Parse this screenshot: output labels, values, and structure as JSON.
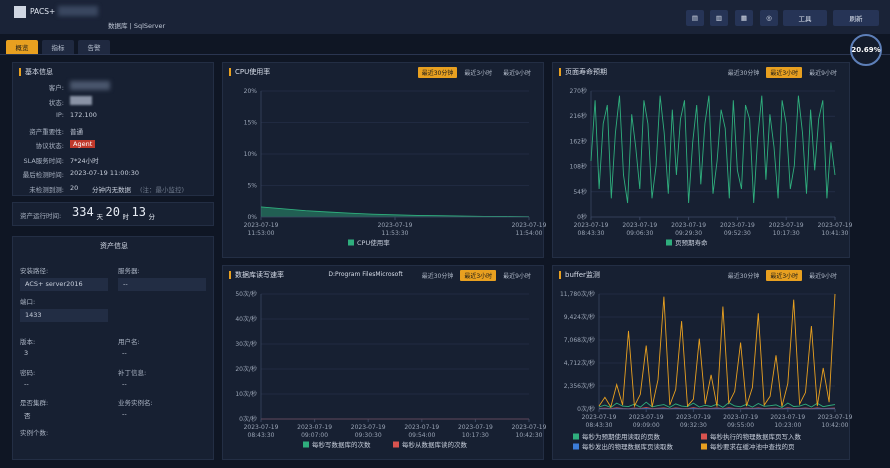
{
  "header": {
    "title": "PACS+",
    "subtitle": "数据库 | SqlServer",
    "buttons": [
      "工具",
      "刷新"
    ]
  },
  "tabs": [
    "概览",
    "指标",
    "告警"
  ],
  "score": "20.69%",
  "basic_info": {
    "title": "基本信息",
    "fields": [
      {
        "label": "客户:"
      },
      {
        "label": "状态:"
      },
      {
        "label": "IP:",
        "value": "172.100"
      },
      {
        "label": "资产重要性:",
        "value": "普通"
      },
      {
        "label": "协议状态:",
        "value": "Agent"
      },
      {
        "label": "SLA服务时间:",
        "value": "7*24小时"
      },
      {
        "label": "最后检测时间:",
        "value": "2023-07-19 11:00:30"
      },
      {
        "label": "未检测到测:",
        "value": "20",
        "extra": "分钟内无数据",
        "note": "(注：最小监控)"
      }
    ]
  },
  "uptime": {
    "label": "资产运行时间:",
    "parts": [
      "334",
      "天",
      "20",
      "时",
      "13",
      "分"
    ]
  },
  "asset_info": {
    "title": "资产信息",
    "fields": [
      {
        "label": "安装路径:",
        "value": "ACS+ server2016"
      },
      {
        "label": "服务器:",
        "value": "--"
      },
      {
        "label": "端口:",
        "value": "1433"
      },
      {
        "label": "版本:",
        "value": "3"
      },
      {
        "label": "用户名:",
        "value": "--"
      },
      {
        "label": "密码:",
        "value": "--"
      },
      {
        "label": "补丁信息:",
        "value": "--"
      },
      {
        "label": "是否集群:",
        "value": "否"
      },
      {
        "label": "业务实例名:",
        "value": "--"
      },
      {
        "label": "实例个数:"
      }
    ]
  },
  "chart_data": [
    {
      "type": "area",
      "title": "CPU使用率",
      "range_buttons": [
        "最近30分钟",
        "最近3小时",
        "最近9小时"
      ],
      "active_range": 0,
      "categories": [
        "2023-07-19 11:53:00",
        null,
        null,
        null,
        null,
        null,
        "2023-07-19 11:53:30",
        null,
        null,
        null,
        null,
        null,
        "2023-07-19 11:54:00"
      ],
      "series": [
        {
          "name": "CPU使用率",
          "color": "#2fae7d",
          "values": [
            1.6,
            1.3,
            1.0,
            0.8,
            0.6,
            0.45,
            0.35,
            0.25,
            0.2,
            0.15,
            0.1,
            0.08,
            0.05
          ]
        }
      ],
      "ylim": [
        0,
        20
      ],
      "yticks": [
        {
          "value": 0,
          "label": "0%"
        },
        {
          "value": 5,
          "label": "5%"
        },
        {
          "value": 10,
          "label": "10%"
        },
        {
          "value": 15,
          "label": "15%"
        },
        {
          "value": 20,
          "label": "20%"
        }
      ],
      "grid": true
    },
    {
      "type": "line",
      "title": "页面寿命预期",
      "range_buttons": [
        "最近30分钟",
        "最近3小时",
        "最近9小时"
      ],
      "active_range": 1,
      "categories": [
        "2023-07-19 08:43:30",
        null,
        null,
        null,
        null,
        null,
        null,
        null,
        null,
        null,
        null,
        null,
        "2023-07-19 09:06:30",
        null,
        null,
        null,
        null,
        null,
        null,
        null,
        null,
        null,
        null,
        null,
        "2023-07-19 09:29:30",
        null,
        null,
        null,
        null,
        null,
        null,
        null,
        null,
        null,
        null,
        null,
        "2023-07-19 09:52:30",
        null,
        null,
        null,
        null,
        null,
        null,
        null,
        null,
        null,
        null,
        null,
        "2023-07-19 10:17:30",
        null,
        null,
        null,
        null,
        null,
        null,
        null,
        null,
        null,
        null,
        null,
        "2023-07-19 10:41:30"
      ],
      "series": [
        {
          "name": "页预期寿命",
          "color": "#2fae7d",
          "values": [
            120,
            250,
            60,
            200,
            240,
            40,
            180,
            260,
            90,
            30,
            220,
            150,
            60,
            250,
            200,
            40,
            110,
            260,
            180,
            50,
            230,
            90,
            210,
            250,
            30,
            160,
            240,
            70,
            200,
            260,
            50,
            120,
            230,
            190,
            40,
            250,
            100,
            60,
            240,
            210,
            30,
            170,
            260,
            80,
            220,
            150,
            40,
            250,
            200,
            60,
            110,
            260,
            180,
            50,
            230,
            100,
            210,
            250,
            40,
            160,
            90
          ]
        }
      ],
      "ylim": [
        0,
        270
      ],
      "yticks": [
        {
          "value": 0,
          "label": "0秒"
        },
        {
          "value": 54,
          "label": "54秒"
        },
        {
          "value": 108,
          "label": "108秒"
        },
        {
          "value": 162,
          "label": "162秒"
        },
        {
          "value": 216,
          "label": "216秒"
        },
        {
          "value": 270,
          "label": "270秒"
        }
      ],
      "grid": true
    },
    {
      "type": "line",
      "title": "数据库读写速率",
      "dropdown": "D:Program FilesMicrosoft",
      "range_buttons": [
        "最近30分钟",
        "最近3小时",
        "最近9小时"
      ],
      "active_range": 1,
      "categories": [
        "2023-07-19 08:43:30",
        null,
        null,
        null,
        null,
        "2023-07-19 09:07:00",
        null,
        null,
        null,
        null,
        "2023-07-19 09:30:30",
        null,
        null,
        null,
        null,
        "2023-07-19 09:54:00",
        null,
        null,
        null,
        null,
        "2023-07-19 10:17:30",
        null,
        null,
        null,
        null,
        "2023-07-19 10:42:30"
      ],
      "series": [
        {
          "name": "每秒写数据库的次数",
          "color": "#2fae7d",
          "values": [
            0,
            0,
            0,
            0,
            0,
            0,
            0,
            0,
            0,
            0,
            0,
            0,
            0,
            0,
            0,
            0,
            0,
            0,
            0,
            0,
            0,
            0,
            0,
            0,
            0,
            0
          ]
        },
        {
          "name": "每秒从数据库读的次数",
          "color": "#d9534f",
          "values": [
            0,
            0,
            0,
            0,
            0,
            0,
            0,
            0,
            0,
            0,
            0,
            0,
            0,
            0,
            0,
            0,
            0,
            0,
            0,
            0,
            0,
            0,
            0,
            0,
            0,
            0
          ]
        }
      ],
      "ylim": [
        0,
        50
      ],
      "yticks": [
        {
          "value": 0,
          "label": "0次/秒"
        },
        {
          "value": 10,
          "label": "10次/秒"
        },
        {
          "value": 20,
          "label": "20次/秒"
        },
        {
          "value": 30,
          "label": "30次/秒"
        },
        {
          "value": 40,
          "label": "40次/秒"
        },
        {
          "value": 50,
          "label": "50次/秒"
        }
      ],
      "grid": true
    },
    {
      "type": "line",
      "title": "buffer监测",
      "range_buttons": [
        "最近30分钟",
        "最近3小时",
        "最近9小时"
      ],
      "active_range": 1,
      "categories": [
        "2023-07-19 08:43:30",
        null,
        null,
        null,
        null,
        null,
        null,
        null,
        "2023-07-19 09:09:00",
        null,
        null,
        null,
        null,
        null,
        null,
        null,
        "2023-07-19 09:32:30",
        null,
        null,
        null,
        null,
        null,
        null,
        null,
        "2023-07-19 09:55:00",
        null,
        null,
        null,
        null,
        null,
        null,
        null,
        "2023-07-19 10:23:00",
        null,
        null,
        null,
        null,
        null,
        null,
        null,
        "2023-07-19 10:42:00"
      ],
      "series": [
        {
          "name": "每秒为预期使用读取的页数",
          "color": "#2fae7d",
          "values": [
            200,
            400,
            150,
            600,
            300,
            250,
            500,
            180,
            700,
            220,
            350,
            450,
            160,
            520,
            300,
            240,
            600,
            200,
            380,
            260,
            500,
            170,
            650,
            310,
            230,
            480,
            190,
            560,
            280,
            340,
            420,
            150,
            610,
            260,
            300,
            500,
            200,
            580,
            240,
            360,
            450
          ]
        },
        {
          "name": "每秒执行的物理数据库页写入数",
          "color": "#d9534f",
          "values": [
            50,
            80,
            40,
            120,
            60,
            30,
            90,
            50,
            140,
            40,
            70,
            100,
            30,
            110,
            60,
            45,
            130,
            40,
            80,
            55,
            100,
            35,
            120,
            60,
            40,
            90,
            50,
            110,
            45,
            70,
            85,
            30,
            125,
            50,
            60,
            95,
            40,
            115,
            45,
            75,
            90
          ]
        },
        {
          "name": "每秒发出的物理数据库页读取数",
          "color": "#3c7dd9",
          "values": [
            20,
            30,
            10,
            40,
            25,
            15,
            35,
            20,
            50,
            15,
            25,
            40,
            10,
            45,
            20,
            15,
            50,
            15,
            30,
            20,
            40,
            10,
            45,
            25,
            15,
            35,
            20,
            40,
            15,
            25,
            30,
            10,
            45,
            20,
            25,
            35,
            15,
            40,
            20,
            30,
            35
          ]
        },
        {
          "name": "每秒要求在缓冲池中查找的页",
          "color": "#e8a020",
          "values": [
            300,
            1200,
            200,
            2500,
            400,
            8000,
            300,
            1500,
            6500,
            200,
            3000,
            11500,
            400,
            2000,
            9000,
            300,
            1000,
            7200,
            500,
            3500,
            250,
            10500,
            600,
            1800,
            6800,
            300,
            2200,
            9800,
            400,
            1300,
            5500,
            250,
            2600,
            11200,
            500,
            1700,
            8500,
            300,
            4200,
            700,
            11780
          ]
        }
      ],
      "ylim": [
        0,
        11780
      ],
      "yticks": [
        {
          "value": 0,
          "label": "0次/秒"
        },
        {
          "value": 2356,
          "label": "2,356次/秒"
        },
        {
          "value": 4712,
          "label": "4,712次/秒"
        },
        {
          "value": 7068,
          "label": "7,068次/秒"
        },
        {
          "value": 9424,
          "label": "9,424次/秒"
        },
        {
          "value": 11780,
          "label": "11,780次/秒"
        }
      ],
      "grid": true
    }
  ]
}
